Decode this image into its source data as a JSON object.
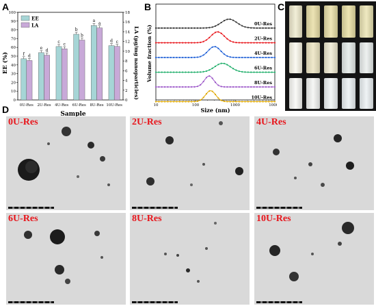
{
  "panels": {
    "a": "A",
    "b": "B",
    "c": "C",
    "d": "D"
  },
  "chart_data": [
    {
      "type": "bar",
      "categories": [
        "0U-Res",
        "2U-Res",
        "4U-Res",
        "6U-Res",
        "8U-Res",
        "10U-Res"
      ],
      "series": [
        {
          "name": "EE",
          "axis": "left",
          "color": "#a6d5d6",
          "values": [
            47,
            54,
            61,
            75,
            85,
            62
          ],
          "letters": [
            "f",
            "e",
            "c",
            "b",
            "a",
            "d"
          ]
        },
        {
          "name": "LA",
          "axis": "right",
          "color": "#c8a9d8",
          "values": [
            8.1,
            9.2,
            10.5,
            12.3,
            14.8,
            11.0
          ],
          "letters": [
            "d",
            "d",
            "c",
            "b",
            "a",
            "c"
          ]
        }
      ],
      "xlabel": "Sample",
      "ylabel": "EE (%)",
      "ylim": [
        0,
        100
      ],
      "yticks": [
        "0",
        "10",
        "20",
        "30",
        "40",
        "50",
        "60",
        "70",
        "80",
        "90",
        "100"
      ],
      "y2label": "LA (μg/mg nanoparticles)",
      "y2lim": [
        0,
        18
      ],
      "y2ticks": [
        "0",
        "2",
        "4",
        "6",
        "8",
        "10",
        "12",
        "14",
        "16",
        "18"
      ],
      "legend_position": "top-left"
    },
    {
      "type": "line",
      "xscale": "log",
      "xlim": [
        10,
        10000
      ],
      "xticks": [
        "10",
        "100",
        "1000",
        "10000"
      ],
      "xlabel": "Size (nm)",
      "ylabel": "Volume fraction (%)",
      "series": [
        {
          "name": "0U-Res",
          "color": "#333333",
          "peak": 700,
          "width": 0.2,
          "height": 13
        },
        {
          "name": "2U-Res",
          "color": "#e8151b",
          "peak": 360,
          "width": 0.17,
          "height": 16
        },
        {
          "name": "4U-Res",
          "color": "#1e5fd6",
          "peak": 300,
          "width": 0.16,
          "height": 16
        },
        {
          "name": "6U-Res",
          "color": "#1fae6a",
          "peak": 480,
          "width": 0.2,
          "height": 13
        },
        {
          "name": "8U-Res",
          "color": "#9b55c8",
          "peak": 220,
          "width": 0.12,
          "height": 16
        },
        {
          "name": "10U-Res",
          "color": "#e0a800",
          "peak": 240,
          "width": 0.13,
          "height": 16
        }
      ]
    }
  ],
  "tem_labels": [
    "0U-Res",
    "2U-Res",
    "4U-Res",
    "6U-Res",
    "8U-Res",
    "10U-Res"
  ]
}
